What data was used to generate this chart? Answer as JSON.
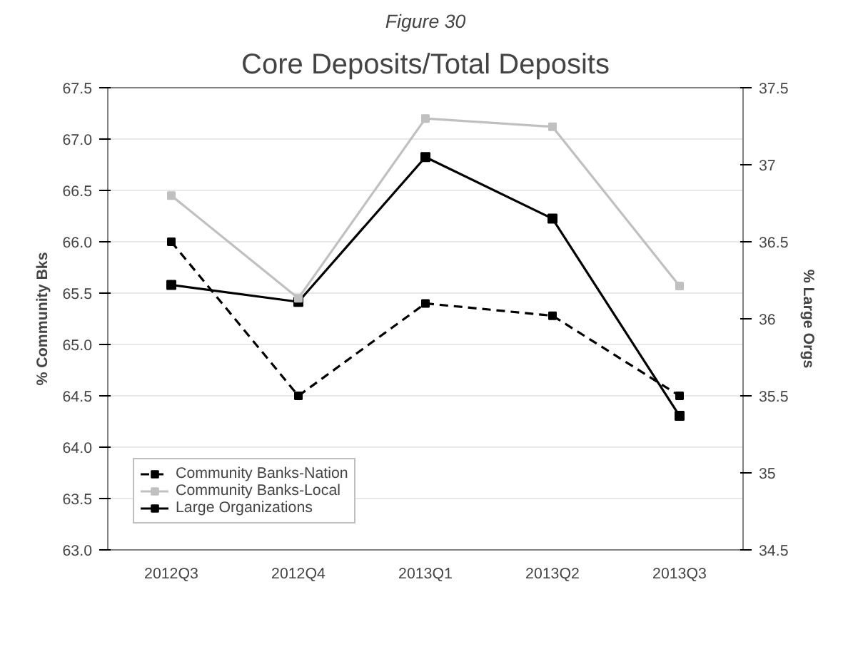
{
  "chart_data": {
    "type": "line",
    "subtitle": "Figure 30",
    "title": "Core Deposits/Total Deposits",
    "categories": [
      "2012Q3",
      "2012Q4",
      "2013Q1",
      "2013Q2",
      "2013Q3"
    ],
    "ylabel": "% Community Bks",
    "y2label": "% Large Orgs",
    "ylim": [
      63,
      67.5
    ],
    "yticks": [
      {
        "value": 63,
        "label": "63.0"
      },
      {
        "value": 63.5,
        "label": "63.5"
      },
      {
        "value": 64,
        "label": "64.0"
      },
      {
        "value": 64.5,
        "label": "64.5"
      },
      {
        "value": 65,
        "label": "65.0"
      },
      {
        "value": 65.5,
        "label": "65.5"
      },
      {
        "value": 66,
        "label": "66.0"
      },
      {
        "value": 66.5,
        "label": "66.5"
      },
      {
        "value": 67,
        "label": "67.0"
      },
      {
        "value": 67.5,
        "label": "67.5"
      }
    ],
    "y2lim": [
      34.5,
      37.5
    ],
    "y2ticks": [
      34.5,
      35,
      35.5,
      36,
      36.5,
      37,
      37.5
    ],
    "grid": "y",
    "legend": "bottom left",
    "marker": "square",
    "series": [
      {
        "name": "Community Banks-Nation",
        "color": "#000000",
        "line_style": "dashed",
        "values": [
          66.0,
          64.5,
          65.4,
          65.28,
          64.5
        ]
      },
      {
        "name": "Community Banks-Local",
        "color": "#c0c0c0",
        "line_style": "solid",
        "values": [
          66.45,
          65.45,
          67.2,
          67.12,
          65.57
        ]
      },
      {
        "name": "Large Organizations",
        "color": "#000000",
        "line_style": "solid",
        "axis": "y2",
        "values": [
          36.22,
          36.11,
          37.05,
          36.65,
          35.37
        ]
      }
    ]
  }
}
